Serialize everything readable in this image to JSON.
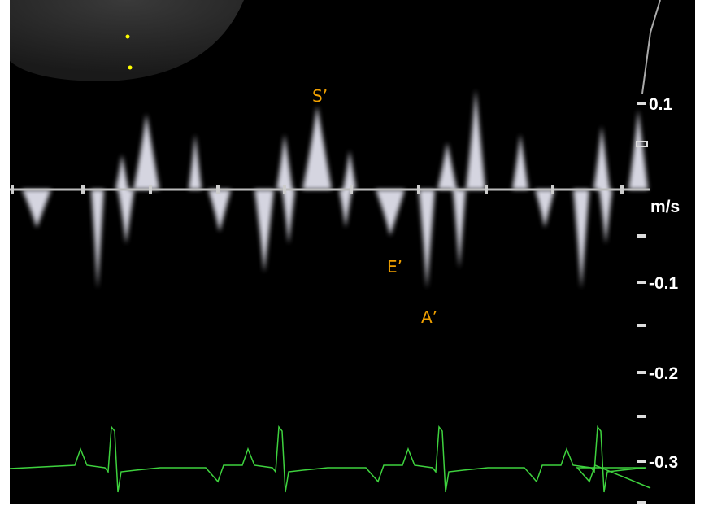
{
  "annotations": [
    "S’",
    "E’",
    "A’"
  ],
  "scale": {
    "unit": "m/s",
    "labels": [
      "0.1",
      "-0.1",
      "-0.2",
      "-0.3"
    ]
  }
}
